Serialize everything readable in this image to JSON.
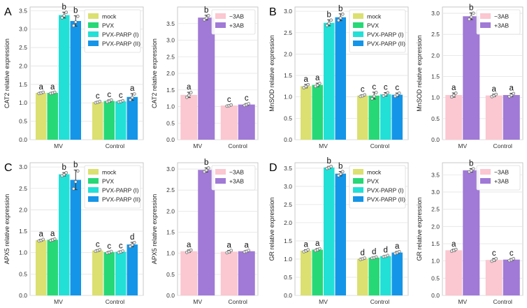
{
  "figure": {
    "panels": [
      {
        "letter": "A",
        "gene": "CAT2"
      },
      {
        "letter": "B",
        "gene": "MnSOD"
      },
      {
        "letter": "C",
        "gene": "APX5"
      },
      {
        "letter": "D",
        "gene": "GR"
      }
    ]
  },
  "colors": {
    "mock": "#dbe070",
    "PVX": "#27d877",
    "PVX-PARP (I)": "#22e0d6",
    "PVX-PARP (II)": "#1495e8",
    "-3AB": "#fbc7d0",
    "+3AB": "#a07ad6",
    "point_face": "#e6e6e6",
    "point_edge": "#555555"
  },
  "chart_data": [
    {
      "id": "A-left",
      "panel": "A",
      "type": "bar",
      "ylabel": "CAT2 relative expression",
      "categories": [
        "MV",
        "Control"
      ],
      "ylim": [
        0,
        3.6
      ],
      "yticks": [
        0.0,
        0.5,
        1.0,
        1.5,
        2.0,
        2.5,
        3.0,
        3.5
      ],
      "grid": true,
      "legend_position": "top-right",
      "series": [
        {
          "name": "mock",
          "values": [
            1.27,
            1.02
          ],
          "err": [
            0.02,
            0.02
          ],
          "letters": [
            "a",
            "c"
          ]
        },
        {
          "name": "PVX",
          "values": [
            1.27,
            1.05
          ],
          "err": [
            0.02,
            0.03
          ],
          "letters": [
            "a",
            "c"
          ]
        },
        {
          "name": "PVX-PARP (I)",
          "values": [
            3.38,
            1.04
          ],
          "err": [
            0.08,
            0.02
          ],
          "letters": [
            "b",
            "c"
          ]
        },
        {
          "name": "PVX-PARP (II)",
          "values": [
            3.22,
            1.16
          ],
          "err": [
            0.14,
            0.09
          ],
          "letters": [
            "b",
            "a"
          ]
        }
      ]
    },
    {
      "id": "A-right",
      "panel": "A",
      "type": "bar",
      "ylabel": "CAT2 relative expression",
      "categories": [
        "MV",
        "Control"
      ],
      "ylim": [
        0,
        4.0
      ],
      "yticks": [
        0.0,
        0.5,
        1.0,
        1.5,
        2.0,
        2.5,
        3.0,
        3.5
      ],
      "grid": true,
      "legend_position": "top-right",
      "series": [
        {
          "name": "−3AB",
          "values": [
            1.35,
            1.03
          ],
          "err": [
            0.08,
            0.02
          ],
          "letters": [
            "a",
            "c"
          ]
        },
        {
          "name": "+3AB",
          "values": [
            3.68,
            1.06
          ],
          "err": [
            0.07,
            0.03
          ],
          "letters": [
            "b",
            "c"
          ]
        }
      ]
    },
    {
      "id": "B-left",
      "panel": "B",
      "type": "bar",
      "ylabel": "MnSOD relative expression",
      "categories": [
        "MV",
        "Control"
      ],
      "ylim": [
        0,
        3.1
      ],
      "yticks": [
        0.0,
        0.5,
        1.0,
        1.5,
        2.0,
        2.5,
        3.0
      ],
      "grid": true,
      "legend_position": "top-right",
      "series": [
        {
          "name": "mock",
          "values": [
            1.25,
            1.03
          ],
          "err": [
            0.04,
            0.02
          ],
          "letters": [
            "a",
            "c"
          ]
        },
        {
          "name": "PVX",
          "values": [
            1.28,
            1.03
          ],
          "err": [
            0.04,
            0.08
          ],
          "letters": [
            "a",
            "c"
          ]
        },
        {
          "name": "PVX-PARP (I)",
          "values": [
            2.73,
            1.06
          ],
          "err": [
            0.07,
            0.04
          ],
          "letters": [
            "b",
            "c"
          ]
        },
        {
          "name": "PVX-PARP (II)",
          "values": [
            2.86,
            1.05
          ],
          "err": [
            0.08,
            0.04
          ],
          "letters": [
            "b",
            "c"
          ]
        }
      ]
    },
    {
      "id": "B-right",
      "panel": "B",
      "type": "bar",
      "ylabel": "MnSOD relative expression",
      "categories": [
        "MV",
        "Control"
      ],
      "ylim": [
        0,
        3.15
      ],
      "yticks": [
        0.0,
        0.5,
        1.0,
        1.5,
        2.0,
        2.5,
        3.0
      ],
      "grid": true,
      "legend_position": "top-right",
      "series": [
        {
          "name": "−3AB",
          "values": [
            1.06,
            1.05
          ],
          "err": [
            0.05,
            0.03
          ],
          "letters": [
            "a",
            "a"
          ]
        },
        {
          "name": "+3AB",
          "values": [
            2.93,
            1.06
          ],
          "err": [
            0.08,
            0.04
          ],
          "letters": [
            "b",
            "a"
          ]
        }
      ]
    },
    {
      "id": "C-left",
      "panel": "C",
      "type": "bar",
      "ylabel": "APX5 relative expression",
      "categories": [
        "MV",
        "Control"
      ],
      "ylim": [
        0,
        3.1
      ],
      "yticks": [
        0.0,
        0.5,
        1.0,
        1.5,
        2.0,
        2.5,
        3.0
      ],
      "grid": true,
      "legend_position": "top-right",
      "series": [
        {
          "name": "mock",
          "values": [
            1.29,
            1.05
          ],
          "err": [
            0.02,
            0.02
          ],
          "letters": [
            "a",
            "c"
          ]
        },
        {
          "name": "PVX",
          "values": [
            1.3,
            1.01
          ],
          "err": [
            0.02,
            0.02
          ],
          "letters": [
            "a",
            "c"
          ]
        },
        {
          "name": "PVX-PARP (I)",
          "values": [
            2.83,
            1.02
          ],
          "err": [
            0.04,
            0.02
          ],
          "letters": [
            "b",
            "c"
          ]
        },
        {
          "name": "PVX-PARP (II)",
          "values": [
            2.7,
            1.19
          ],
          "err": [
            0.23,
            0.05
          ],
          "letters": [
            "b",
            "d"
          ]
        }
      ]
    },
    {
      "id": "C-right",
      "panel": "C",
      "type": "bar",
      "ylabel": "APX5 relative expression",
      "categories": [
        "MV",
        "Control"
      ],
      "ylim": [
        0,
        3.15
      ],
      "yticks": [
        0.0,
        0.5,
        1.0,
        1.5,
        2.0,
        2.5,
        3.0
      ],
      "grid": true,
      "legend_position": "top-right",
      "series": [
        {
          "name": "−3AB",
          "values": [
            1.05,
            1.04
          ],
          "err": [
            0.03,
            0.03
          ],
          "letters": [
            "a",
            "a"
          ]
        },
        {
          "name": "+3AB",
          "values": [
            2.98,
            1.05
          ],
          "err": [
            0.05,
            0.02
          ],
          "letters": [
            "b",
            "a"
          ]
        }
      ]
    },
    {
      "id": "D-left",
      "panel": "D",
      "type": "bar",
      "ylabel": "GR relative expression",
      "categories": [
        "MV",
        "Control"
      ],
      "ylim": [
        0,
        3.65
      ],
      "yticks": [
        0.0,
        0.5,
        1.0,
        1.5,
        2.0,
        2.5,
        3.0,
        3.5
      ],
      "grid": true,
      "legend_position": "top-right",
      "series": [
        {
          "name": "mock",
          "values": [
            1.23,
            1.01
          ],
          "err": [
            0.03,
            0.02
          ],
          "letters": [
            "a",
            "d"
          ]
        },
        {
          "name": "PVX",
          "values": [
            1.26,
            1.04
          ],
          "err": [
            0.03,
            0.02
          ],
          "letters": [
            "a",
            "d"
          ]
        },
        {
          "name": "PVX-PARP (I)",
          "values": [
            3.52,
            1.08
          ],
          "err": [
            0.03,
            0.02
          ],
          "letters": [
            "b",
            "d"
          ]
        },
        {
          "name": "PVX-PARP (II)",
          "values": [
            3.35,
            1.18
          ],
          "err": [
            0.06,
            0.03
          ],
          "letters": [
            "b",
            "a"
          ]
        }
      ]
    },
    {
      "id": "D-right",
      "panel": "D",
      "type": "bar",
      "ylabel": "GR relative expression",
      "categories": [
        "MV",
        "Control"
      ],
      "ylim": [
        0,
        3.85
      ],
      "yticks": [
        0.0,
        0.5,
        1.0,
        1.5,
        2.0,
        2.5,
        3.0,
        3.5
      ],
      "grid": true,
      "legend_position": "top-right",
      "series": [
        {
          "name": "−3AB",
          "values": [
            1.31,
            1.03
          ],
          "err": [
            0.03,
            0.04
          ],
          "letters": [
            "a",
            "c"
          ]
        },
        {
          "name": "+3AB",
          "values": [
            3.63,
            1.04
          ],
          "err": [
            0.05,
            0.03
          ],
          "letters": [
            "b",
            "c"
          ]
        }
      ]
    }
  ]
}
